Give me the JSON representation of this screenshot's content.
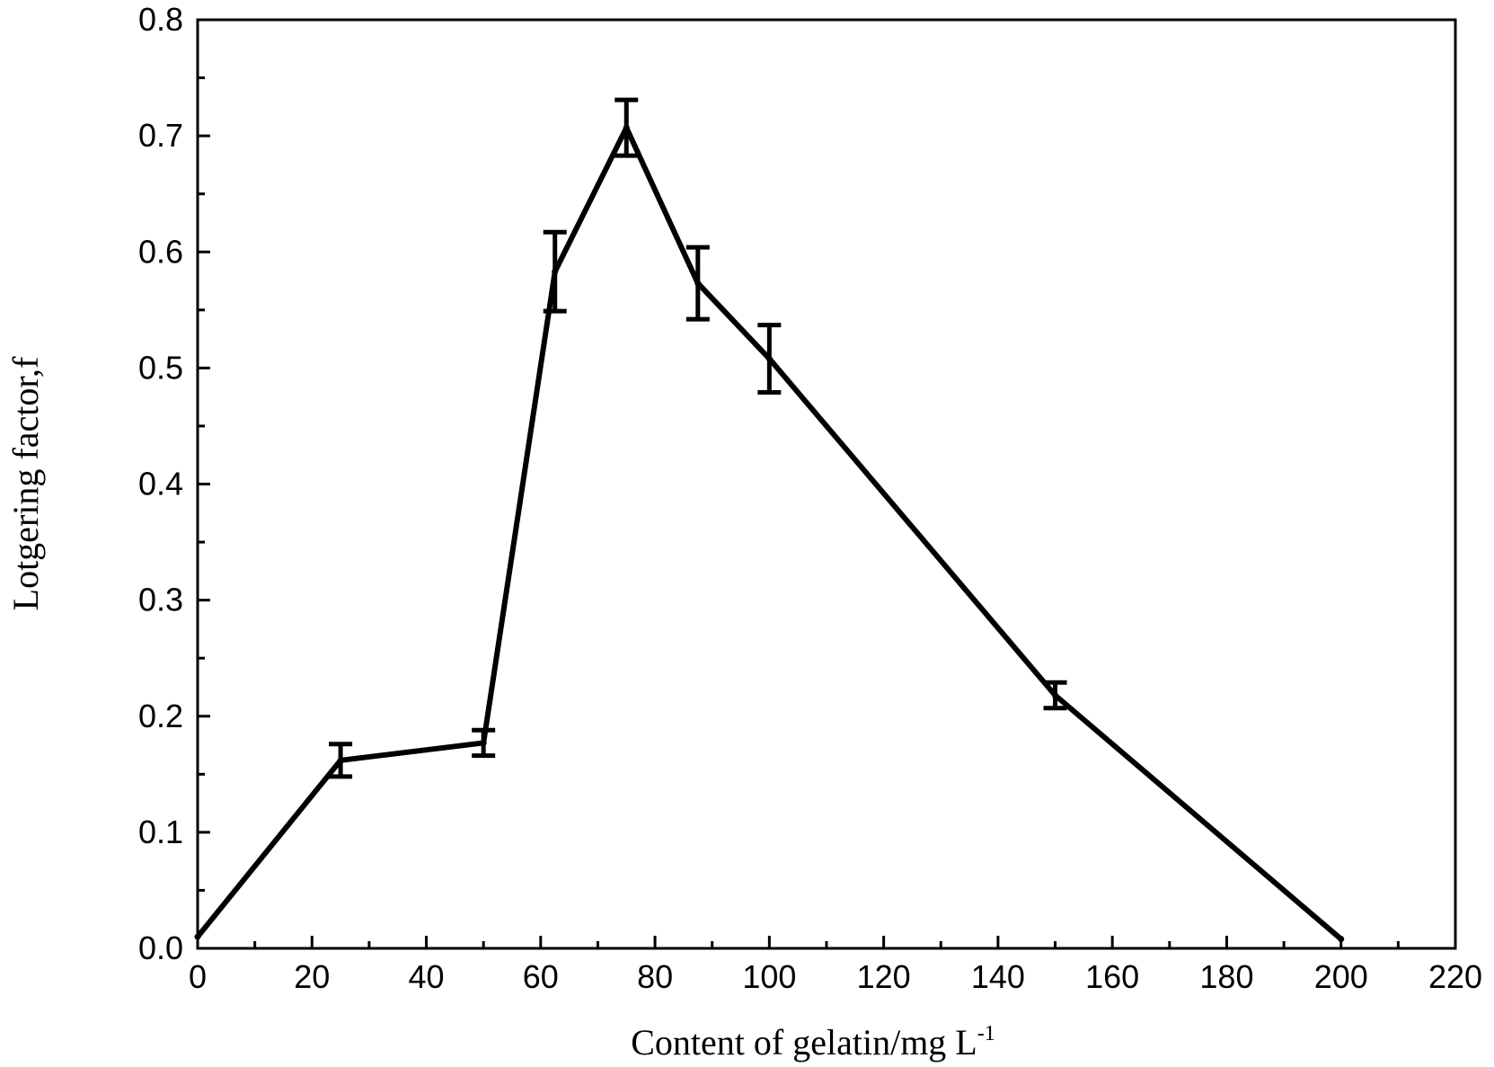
{
  "chart_data": {
    "type": "line",
    "title": "",
    "xlabel": "Content of gelatin/mg L",
    "xlabel_superscript": "-1",
    "ylabel": "Lotgering factor,f",
    "xlim": [
      0,
      220
    ],
    "ylim": [
      0.0,
      0.8
    ],
    "x_ticks": [
      "0",
      "20",
      "40",
      "60",
      "80",
      "100",
      "120",
      "140",
      "160",
      "180",
      "200",
      "220"
    ],
    "y_ticks": [
      "0.0",
      "0.1",
      "0.2",
      "0.3",
      "0.4",
      "0.5",
      "0.6",
      "0.7",
      "0.8"
    ],
    "grid": false,
    "legend": "none",
    "line_color": "#000000",
    "series": [
      {
        "x": [
          0,
          25,
          50,
          62.5,
          75,
          87.5,
          100,
          150,
          200
        ],
        "y": [
          0.01,
          0.162,
          0.177,
          0.583,
          0.707,
          0.573,
          0.508,
          0.218,
          0.008
        ],
        "error": [
          0,
          0.014,
          0.011,
          0.034,
          0.024,
          0.031,
          0.029,
          0.011,
          0
        ]
      }
    ]
  }
}
